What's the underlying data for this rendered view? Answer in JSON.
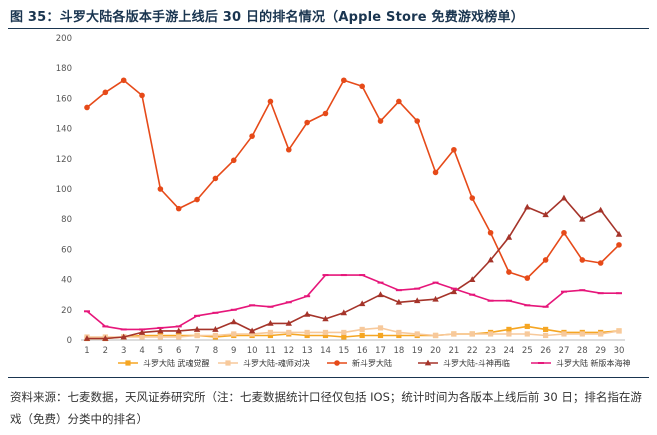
{
  "title": "图 35：斗罗大陆各版本手游上线后 30 日的排名情况（Apple Store 免费游戏榜单）",
  "note": "资料来源：七麦数据，天风证券研究所（注：七麦数据统计口径仅包括 IOS；统计时间为各版本上线后前 30 日；排名指在游戏（免费）分类中的排名）",
  "chart_data": {
    "type": "line",
    "x": [
      1,
      2,
      3,
      4,
      5,
      6,
      7,
      8,
      9,
      10,
      11,
      12,
      13,
      14,
      15,
      16,
      17,
      18,
      19,
      20,
      21,
      22,
      23,
      24,
      25,
      26,
      27,
      28,
      29,
      30
    ],
    "ylim": [
      0,
      200
    ],
    "yticks": [
      0,
      20,
      40,
      60,
      80,
      100,
      120,
      140,
      160,
      180,
      200
    ],
    "grid": false,
    "legend": "bottom",
    "series": [
      {
        "name": "斗罗大陆 武魂觉醒",
        "color": "#f5a623",
        "marker": "square",
        "values": [
          1,
          1,
          2,
          3,
          3,
          3,
          3,
          2,
          3,
          3,
          3,
          4,
          3,
          3,
          2,
          3,
          3,
          3,
          3,
          3,
          4,
          4,
          5,
          7,
          9,
          7,
          5,
          5,
          5,
          6
        ]
      },
      {
        "name": "斗罗大陆-魂师对决",
        "color": "#f7c99b",
        "marker": "square",
        "values": [
          2,
          2,
          2,
          2,
          2,
          2,
          3,
          3,
          4,
          4,
          5,
          5,
          5,
          5,
          5,
          7,
          8,
          5,
          4,
          3,
          4,
          4,
          4,
          4,
          4,
          3,
          4,
          4,
          4,
          6
        ]
      },
      {
        "name": "新斗罗大陆",
        "color": "#e64a19",
        "marker": "circle",
        "values": [
          154,
          164,
          172,
          162,
          100,
          87,
          93,
          107,
          119,
          135,
          158,
          126,
          144,
          150,
          172,
          168,
          145,
          158,
          145,
          111,
          126,
          94,
          71,
          45,
          41,
          53,
          71,
          53,
          51,
          63
        ]
      },
      {
        "name": "斗罗大陆-斗神再临",
        "color": "#a5342a",
        "marker": "triangle",
        "values": [
          1,
          1,
          2,
          5,
          6,
          6,
          7,
          7,
          12,
          6,
          11,
          11,
          17,
          14,
          18,
          24,
          30,
          25,
          26,
          27,
          32,
          40,
          53,
          68,
          88,
          83,
          94,
          80,
          86,
          70
        ]
      },
      {
        "name": "斗罗大陆 新版本海神",
        "color": "#e6167a",
        "marker": "dash",
        "values": [
          19,
          9,
          7,
          7,
          8,
          9,
          16,
          18,
          20,
          23,
          22,
          25,
          29,
          43,
          43,
          43,
          38,
          33,
          34,
          38,
          34,
          30,
          26,
          26,
          23,
          22,
          32,
          33,
          31,
          31
        ]
      }
    ]
  }
}
